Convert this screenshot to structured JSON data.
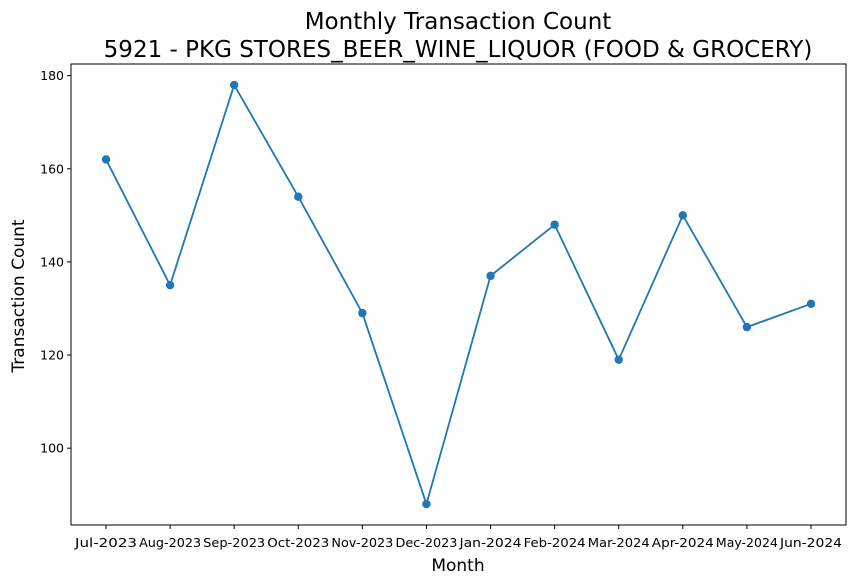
{
  "chart_data": {
    "type": "line",
    "title": "Monthly Transaction Count",
    "subtitle": "5921 - PKG STORES_BEER_WINE_LIQUOR (FOOD & GROCERY)",
    "xlabel": "Month",
    "ylabel": "Transaction Count",
    "categories": [
      "Jul-2023",
      "Aug-2023",
      "Sep-2023",
      "Oct-2023",
      "Nov-2023",
      "Dec-2023",
      "Jan-2024",
      "Feb-2024",
      "Mar-2024",
      "Apr-2024",
      "May-2024",
      "Jun-2024"
    ],
    "series": [
      {
        "values": [
          162,
          135,
          178,
          154,
          129,
          88,
          137,
          148,
          119,
          150,
          126,
          131
        ],
        "color": "#1f77b4",
        "marker": "circle"
      }
    ],
    "yticks": [
      "100",
      "120",
      "140",
      "160",
      "180"
    ],
    "ylim": [
      83.5,
      182.5
    ],
    "grid": false,
    "legend": "none"
  }
}
